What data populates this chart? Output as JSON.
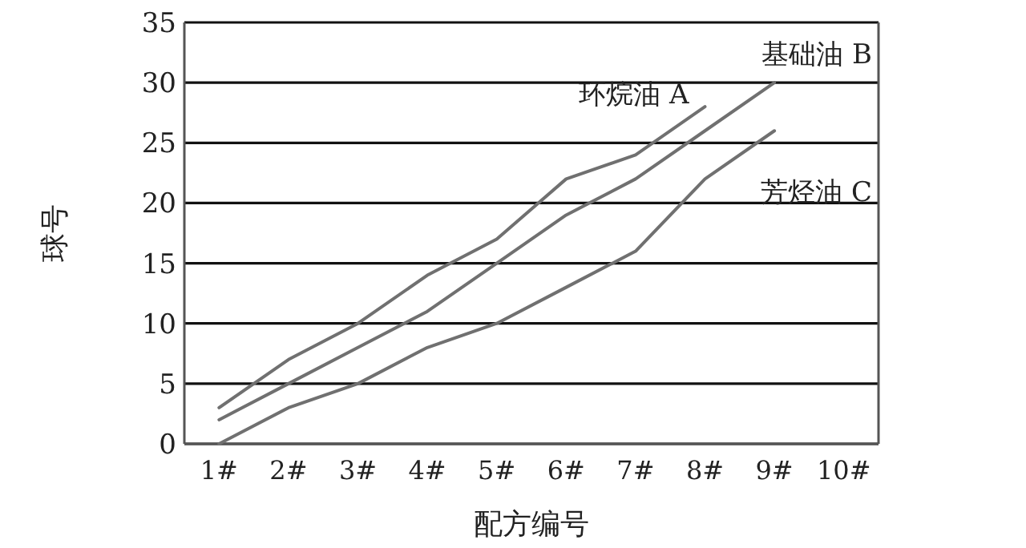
{
  "chart_data": {
    "type": "line",
    "xlabel": "配方编号",
    "ylabel": "球号",
    "categories": [
      "1#",
      "2#",
      "3#",
      "4#",
      "5#",
      "6#",
      "7#",
      "8#",
      "9#",
      "10#"
    ],
    "series": [
      {
        "name": "环烷油 A",
        "color": "#707070",
        "values": [
          3,
          7,
          10,
          14,
          17,
          22,
          24,
          28,
          null,
          null
        ]
      },
      {
        "name": "基础油 B",
        "color": "#707070",
        "values": [
          2,
          5,
          8,
          11,
          15,
          19,
          22,
          26,
          30,
          null
        ]
      },
      {
        "name": "芳烃油 C",
        "color": "#707070",
        "values": [
          0,
          3,
          5,
          8,
          10,
          13,
          16,
          22,
          26,
          null
        ]
      }
    ],
    "ylim": [
      0,
      35
    ],
    "yticks": [
      0,
      5,
      10,
      15,
      20,
      25,
      30,
      35
    ],
    "grid": "y",
    "legend": false,
    "marker": "none",
    "line_style": "solid"
  }
}
